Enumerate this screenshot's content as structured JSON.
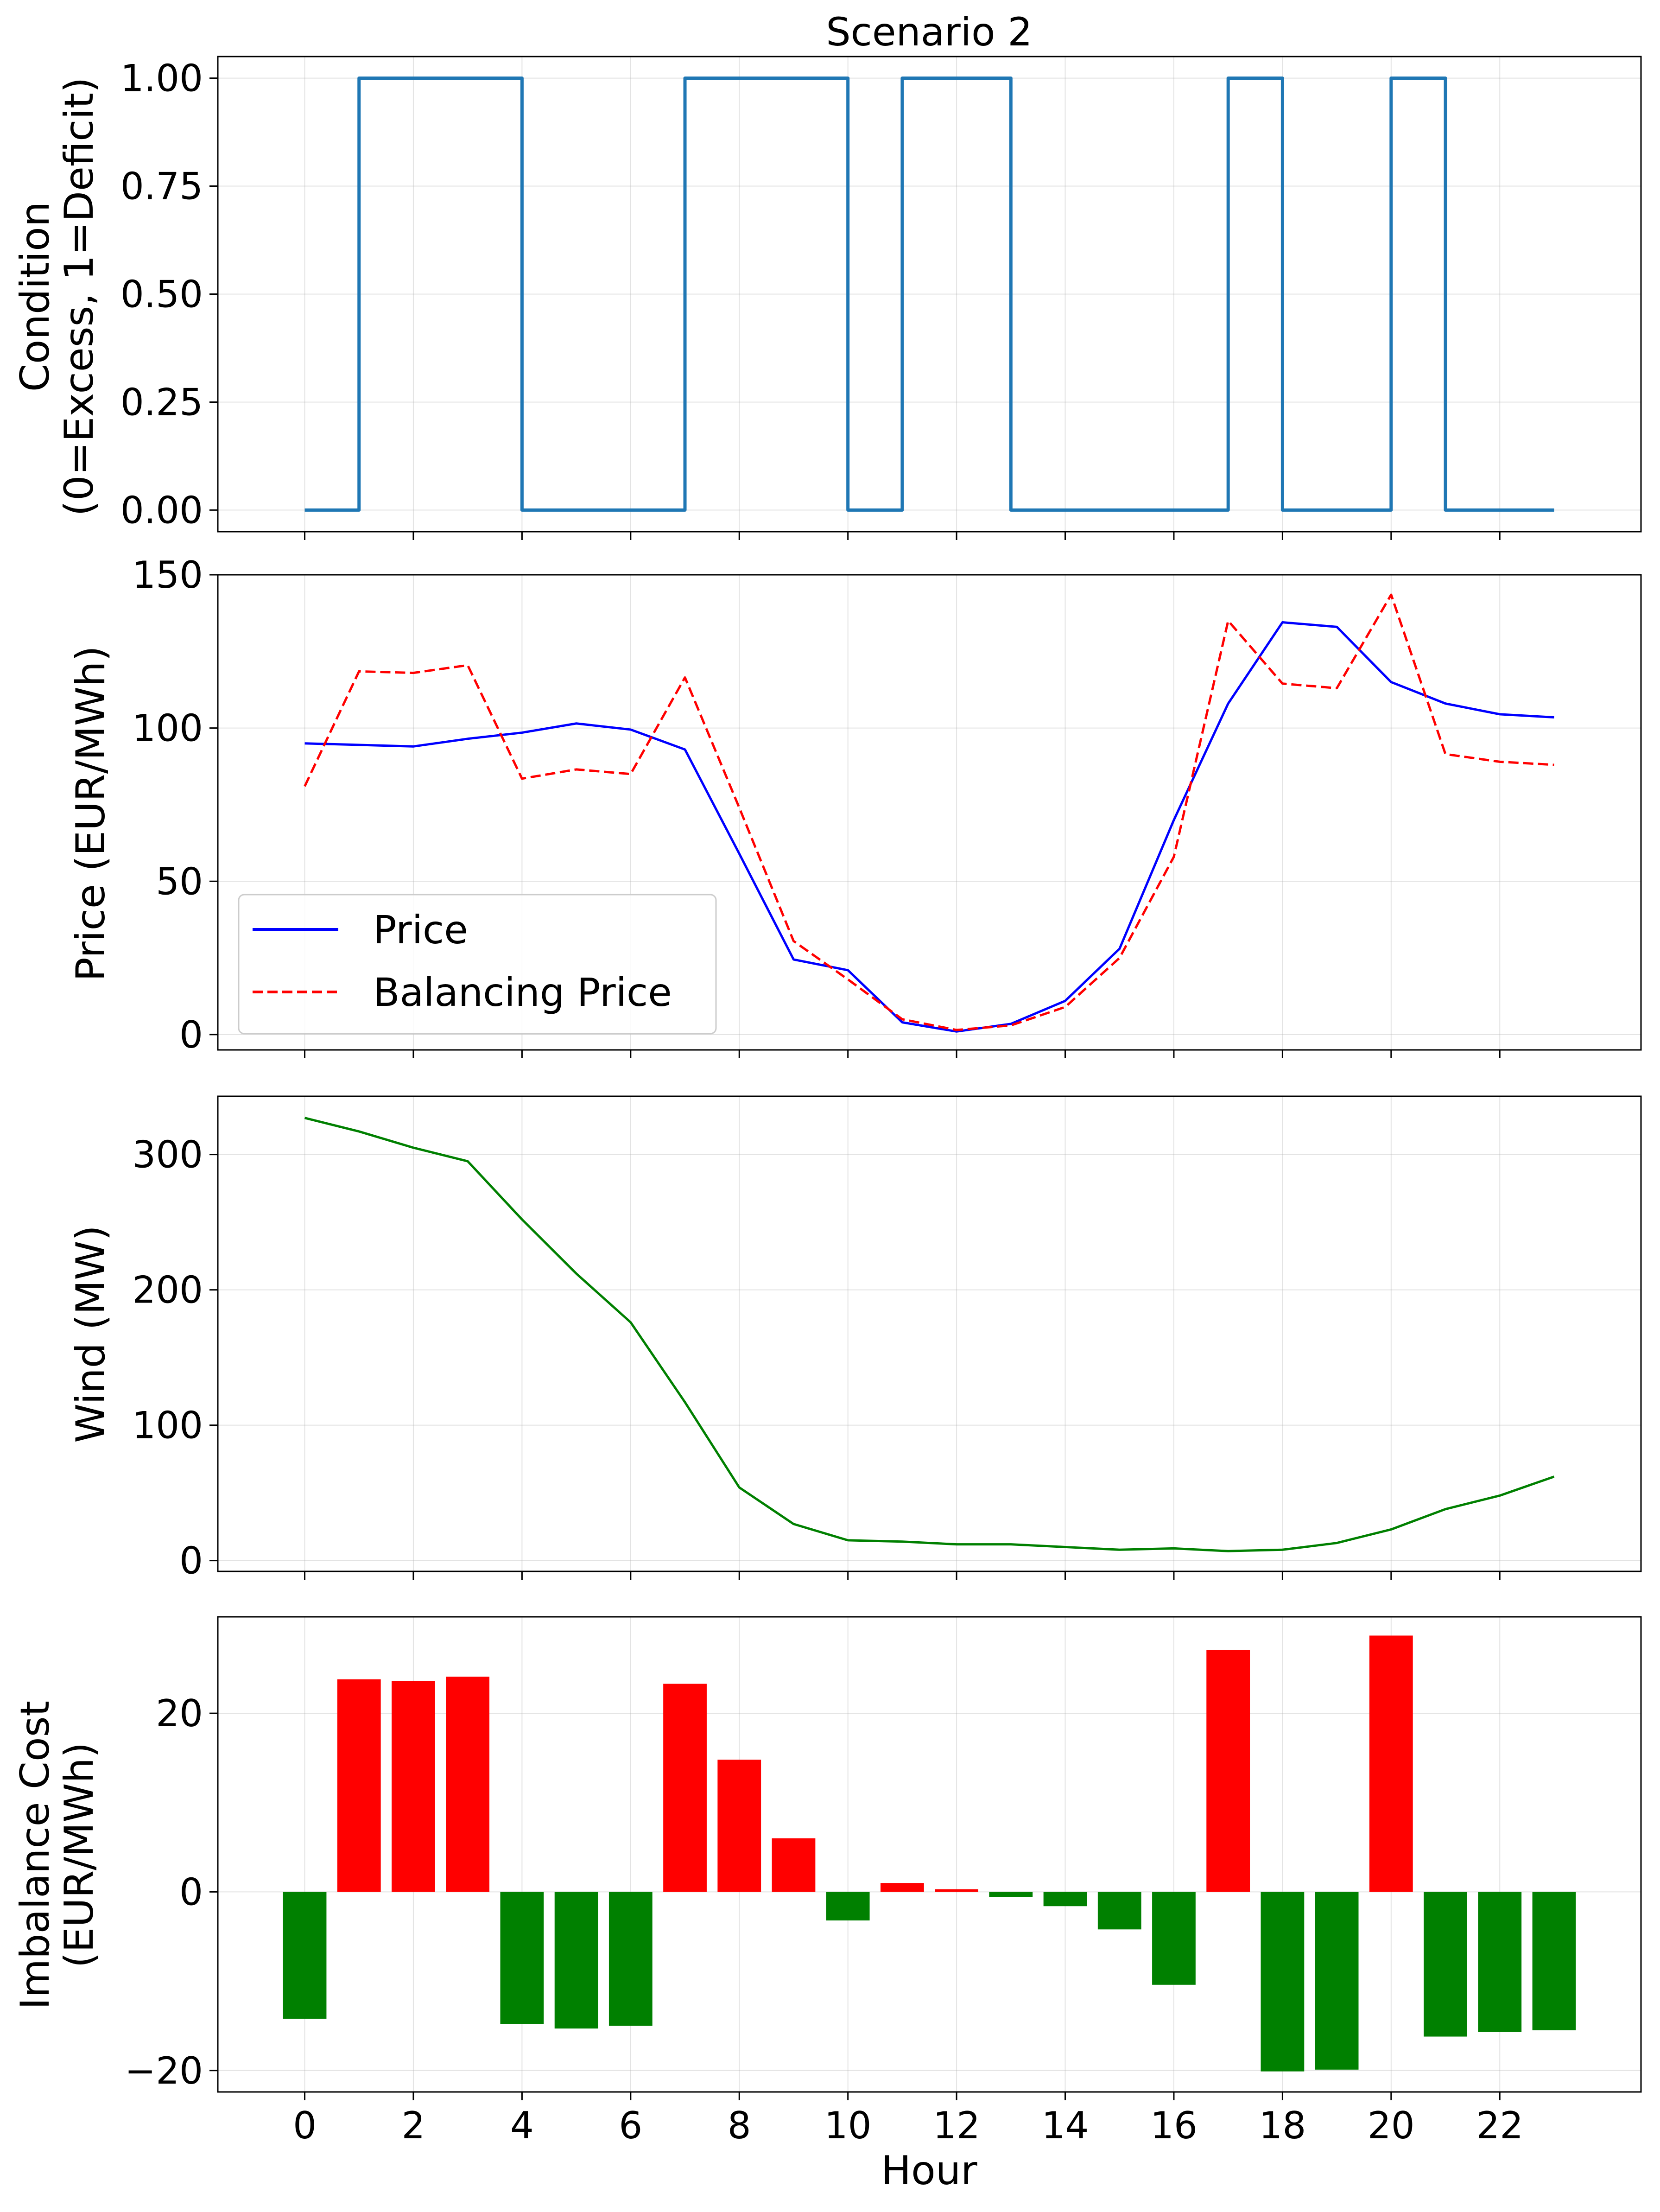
{
  "figure": {
    "title": "Scenario 2",
    "xlabel": "Hour"
  },
  "chart_data": [
    {
      "type": "line",
      "title": "Scenario 2",
      "ylabel_line1": "Condition",
      "ylabel_line2": "(0=Excess, 1=Deficit)",
      "x": [
        0,
        1,
        2,
        3,
        4,
        5,
        6,
        7,
        8,
        9,
        10,
        11,
        12,
        13,
        14,
        15,
        16,
        17,
        18,
        19,
        20,
        21,
        22,
        23
      ],
      "series": [
        {
          "values": [
            0,
            1,
            1,
            1,
            0,
            0,
            0,
            1,
            1,
            1,
            0,
            1,
            1,
            0,
            0,
            0,
            0,
            1,
            0,
            0,
            1,
            0,
            0,
            0
          ],
          "color": "#1f77b4",
          "style": "steps-post"
        }
      ],
      "xlim": [
        -1.6,
        24.6
      ],
      "ylim": [
        -0.05,
        1.05
      ],
      "yticks": [
        0.0,
        0.25,
        0.5,
        0.75,
        1.0
      ],
      "ytick_labels": [
        "0.00",
        "0.25",
        "0.50",
        "0.75",
        "1.00"
      ],
      "grid": true
    },
    {
      "type": "line",
      "ylabel": "Price (EUR/MWh)",
      "x": [
        0,
        1,
        2,
        3,
        4,
        5,
        6,
        7,
        8,
        9,
        10,
        11,
        12,
        13,
        14,
        15,
        16,
        17,
        18,
        19,
        20,
        21,
        22,
        23
      ],
      "series": [
        {
          "name": "Price",
          "values": [
            95,
            94.5,
            94,
            96.5,
            98.5,
            101.5,
            99.5,
            93,
            59,
            24.5,
            21,
            4,
            1,
            3.5,
            11,
            28,
            70,
            108,
            134.5,
            133,
            115,
            108,
            104.5,
            103.5
          ],
          "color": "#0000ff",
          "dash": "solid"
        },
        {
          "name": "Balancing Price",
          "values": [
            81,
            118.5,
            118,
            120.5,
            83.5,
            86.5,
            85,
            116.5,
            74,
            30.5,
            18,
            5,
            1.5,
            3,
            9,
            25,
            58,
            135,
            114.5,
            113,
            143.5,
            91.5,
            89,
            88
          ],
          "color": "#ff0000",
          "dash": "dashed"
        }
      ],
      "xlim": [
        -1.6,
        24.6
      ],
      "ylim": [
        -5,
        150
      ],
      "yticks": [
        0,
        50,
        100,
        150
      ],
      "legend": "lower-left",
      "grid": true
    },
    {
      "type": "line",
      "ylabel": "Wind (MW)",
      "x": [
        0,
        1,
        2,
        3,
        4,
        5,
        6,
        7,
        8,
        9,
        10,
        11,
        12,
        13,
        14,
        15,
        16,
        17,
        18,
        19,
        20,
        21,
        22,
        23
      ],
      "series": [
        {
          "values": [
            327,
            317,
            305,
            295,
            252,
            212,
            176,
            117,
            54,
            27,
            15,
            14,
            12,
            12,
            10,
            8,
            9,
            7,
            8,
            13,
            23,
            38,
            48,
            62
          ],
          "color": "#008000",
          "dash": "solid"
        }
      ],
      "xlim": [
        -1.6,
        24.6
      ],
      "ylim": [
        -8,
        343
      ],
      "yticks": [
        0,
        100,
        200,
        300
      ],
      "grid": true
    },
    {
      "type": "bar",
      "ylabel_line1": "Imbalance Cost",
      "ylabel_line2": "(EUR/MWh)",
      "x": [
        0,
        1,
        2,
        3,
        4,
        5,
        6,
        7,
        8,
        9,
        10,
        11,
        12,
        13,
        14,
        15,
        16,
        17,
        18,
        19,
        20,
        21,
        22,
        23
      ],
      "values": [
        -14.2,
        23.8,
        23.6,
        24.1,
        -14.8,
        -15.3,
        -15,
        23.3,
        14.8,
        6,
        -3.2,
        1,
        0.3,
        -0.6,
        -1.6,
        -4.2,
        -10.4,
        27.1,
        -20.1,
        -19.9,
        28.7,
        -16.2,
        -15.7,
        -15.5
      ],
      "positive_color": "#ff0000",
      "negative_color": "#008000",
      "xlim": [
        -1.6,
        24.6
      ],
      "ylim": [
        -22.4,
        30.8
      ],
      "yticks": [
        -20,
        0,
        20
      ],
      "ytick_labels": [
        "−20",
        "0",
        "20"
      ],
      "grid": true
    }
  ],
  "xticks": [
    0,
    2,
    4,
    6,
    8,
    10,
    12,
    14,
    16,
    18,
    20,
    22
  ]
}
